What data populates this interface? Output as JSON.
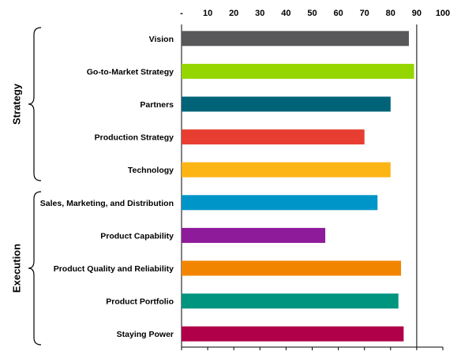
{
  "chart_data": {
    "type": "bar",
    "orientation": "horizontal",
    "xlim": [
      0,
      100
    ],
    "x_ticks": [
      "-",
      "10",
      "20",
      "30",
      "40",
      "50",
      "60",
      "70",
      "80",
      "90",
      "100"
    ],
    "x_axis_position": "top",
    "grid": false,
    "reference_line": 90,
    "categories": [
      "Vision",
      "Go-to-Market Strategy",
      "Partners",
      "Production Strategy",
      "Technology",
      "Sales, Marketing, and Distribution",
      "Product Capability",
      "Product Quality and Reliability",
      "Product Portfolio",
      "Staying Power"
    ],
    "values": [
      87,
      89,
      80,
      70,
      80,
      75,
      55,
      84,
      83,
      85
    ],
    "colors": [
      "#58585a",
      "#95d600",
      "#006378",
      "#e83e32",
      "#fdb515",
      "#0095c8",
      "#8e1b9a",
      "#f28500",
      "#00957f",
      "#b0004a"
    ],
    "groups": [
      {
        "label": "Strategy",
        "from": 0,
        "to": 4
      },
      {
        "label": "Execution",
        "from": 5,
        "to": 9
      }
    ]
  }
}
